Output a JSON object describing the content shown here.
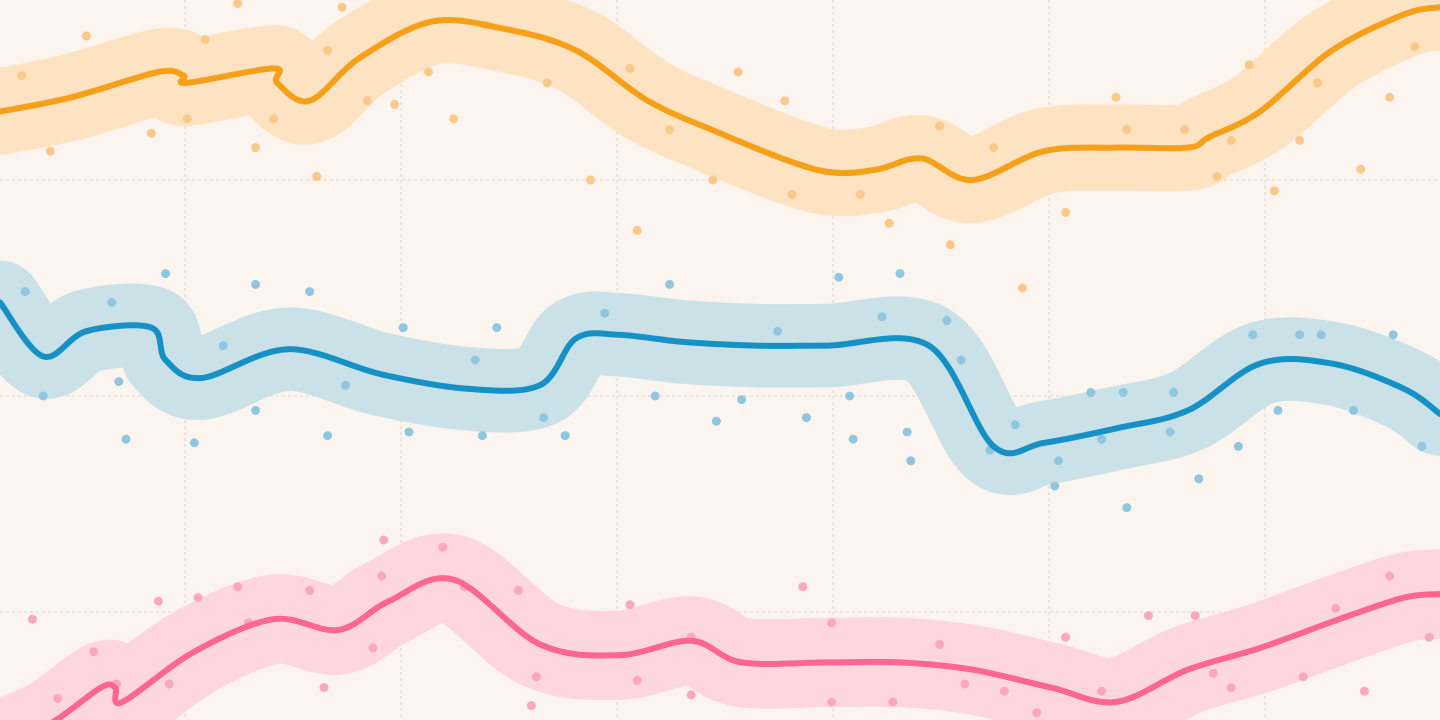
{
  "chart_data": {
    "type": "line",
    "title": "",
    "xlabel": "",
    "ylabel": "",
    "grid": true,
    "legend": "none",
    "x_range": [
      0,
      20
    ],
    "y_range": [
      0,
      10
    ],
    "x_gridlines": [
      2.57,
      5.57,
      8.57,
      11.57,
      14.57,
      17.57
    ],
    "y_gridlines": [
      1.5,
      4.5,
      7.5
    ],
    "series": [
      {
        "color": "#f6a01a",
        "band_color": "#fde3c2",
        "point_color": "#fbc88a",
        "band_half_width": 0.6,
        "line_x": [
          0,
          1,
          2.2,
          2.55,
          2.6,
          3.8,
          3.85,
          4.3,
          5,
          6,
          7,
          8,
          9,
          10,
          11,
          11.6,
          12.2,
          12.8,
          13.5,
          14.5,
          15.5,
          16.5,
          16.8,
          17.5,
          18.5,
          19.5,
          20
        ],
        "line_y": [
          8.45,
          8.65,
          9.0,
          8.95,
          8.85,
          9.05,
          8.85,
          8.6,
          9.2,
          9.7,
          9.6,
          9.3,
          8.6,
          8.15,
          7.75,
          7.6,
          7.65,
          7.8,
          7.5,
          7.9,
          7.95,
          7.95,
          8.1,
          8.45,
          9.3,
          9.8,
          9.9
        ],
        "points_x": [
          0.3,
          0.7,
          1.2,
          2.1,
          2.6,
          2.85,
          3.3,
          3.55,
          3.8,
          4.4,
          4.55,
          4.75,
          5.1,
          5.48,
          5.95,
          6.3,
          6.75,
          7.6,
          8.2,
          8.75,
          8.85,
          9.3,
          9.9,
          10.25,
          10.9,
          11.0,
          11.95,
          12.35,
          13.05,
          13.2,
          13.8,
          14.2,
          14.8,
          15.5,
          15.65,
          16.45,
          16.9,
          17.1,
          17.35,
          17.7,
          18.05,
          18.3,
          18.9,
          19.3,
          19.65
        ],
        "points_y": [
          8.95,
          7.9,
          9.5,
          8.15,
          8.35,
          9.45,
          9.95,
          7.95,
          8.35,
          7.55,
          9.3,
          9.9,
          8.6,
          8.55,
          9.0,
          8.35,
          9.65,
          8.85,
          7.5,
          9.05,
          6.8,
          8.2,
          7.5,
          9.0,
          8.6,
          7.3,
          7.3,
          6.9,
          8.25,
          6.6,
          7.95,
          6.0,
          7.05,
          8.65,
          8.2,
          8.2,
          7.55,
          8.05,
          9.1,
          7.35,
          8.05,
          8.85,
          7.65,
          8.65,
          9.35
        ]
      },
      {
        "color": "#1691c6",
        "band_color": "#cbe1e8",
        "point_color": "#8fc7e1",
        "band_half_width": 0.58,
        "line_x": [
          0,
          0.6,
          1.2,
          2.1,
          2.3,
          2.8,
          4.0,
          5.3,
          6.5,
          7.5,
          8.0,
          8.6,
          9.5,
          10.5,
          11.5,
          12.9,
          13.8,
          14.5,
          15.5,
          16.5,
          17.5,
          18.5,
          19.5,
          20
        ],
        "line_y": [
          5.8,
          5.05,
          5.4,
          5.45,
          5.0,
          4.75,
          5.15,
          4.8,
          4.6,
          4.65,
          5.3,
          5.35,
          5.25,
          5.2,
          5.2,
          5.2,
          3.8,
          3.85,
          4.05,
          4.3,
          4.95,
          4.95,
          4.6,
          4.25
        ],
        "points_x": [
          0.35,
          0.6,
          1.55,
          1.65,
          1.75,
          2.3,
          2.7,
          3.1,
          3.55,
          3.55,
          4.3,
          4.55,
          4.8,
          5.6,
          5.68,
          6.6,
          6.7,
          6.9,
          7.55,
          7.85,
          8.4,
          9.1,
          9.3,
          9.95,
          10.3,
          10.8,
          11.2,
          11.65,
          11.8,
          11.85,
          12.25,
          12.5,
          12.6,
          12.65,
          13.15,
          13.35,
          13.75,
          14.1,
          14.65,
          14.7,
          15.15,
          15.3,
          15.6,
          15.65,
          16.25,
          16.65,
          16.3,
          17.2,
          17.4,
          17.75,
          18.05,
          18.35,
          18.8,
          19.35,
          19.75
        ],
        "points_y": [
          5.95,
          4.5,
          5.8,
          4.7,
          3.9,
          6.2,
          3.85,
          5.2,
          6.05,
          4.3,
          5.95,
          3.95,
          4.65,
          5.45,
          4.0,
          5.0,
          3.95,
          5.45,
          4.2,
          3.95,
          5.65,
          4.5,
          6.05,
          4.15,
          4.45,
          5.4,
          4.2,
          6.15,
          4.5,
          3.9,
          5.6,
          6.2,
          4.0,
          3.6,
          5.55,
          5.0,
          3.75,
          4.1,
          3.25,
          3.6,
          4.55,
          3.9,
          4.55,
          2.95,
          4.0,
          3.35,
          4.55,
          3.8,
          5.35,
          4.3,
          5.35,
          5.35,
          4.3,
          5.35,
          3.8
        ],
        "points_y_extra_note": ""
      },
      {
        "color": "#fd678f",
        "band_color": "#fdd6de",
        "point_color": "#fba8bf",
        "band_half_width": 0.62,
        "line_x": [
          0,
          0.7,
          1.4,
          1.6,
          1.7,
          2.7,
          3.8,
          4.7,
          5.4,
          6.3,
          7.5,
          8.6,
          9.6,
          10.3,
          11.5,
          12.5,
          13.5,
          14.6,
          15.5,
          16.5,
          17.5,
          18.6,
          19.5,
          20
        ],
        "line_y": [
          -0.35,
          -0.05,
          0.45,
          0.45,
          0.25,
          0.95,
          1.4,
          1.25,
          1.65,
          1.95,
          1.05,
          0.9,
          1.1,
          0.8,
          0.8,
          0.8,
          0.7,
          0.45,
          0.25,
          0.7,
          1.0,
          1.4,
          1.7,
          1.75
        ],
        "points_x": [
          0.45,
          0.8,
          1.3,
          1.62,
          2.2,
          2.35,
          2.75,
          3.3,
          3.45,
          4.3,
          4.5,
          5.18,
          5.3,
          5.33,
          6.15,
          6.45,
          7.2,
          7.45,
          7.38,
          8.75,
          9.6,
          8.85,
          9.6,
          11.15,
          11.55,
          11.55,
          12.4,
          13.05,
          13.4,
          13.95,
          14.4,
          14.8,
          15.3,
          15.95,
          16.6,
          16.85,
          17.1,
          18.1,
          18.55,
          18.95,
          19.3,
          19.85
        ],
        "points_y": [
          1.4,
          0.3,
          0.95,
          0.5,
          1.65,
          0.5,
          1.7,
          1.85,
          1.35,
          1.8,
          0.45,
          1.0,
          2.0,
          2.5,
          2.4,
          1.85,
          1.8,
          0.6,
          0.2,
          1.6,
          1.15,
          0.55,
          0.35,
          1.85,
          1.35,
          0.25,
          0.25,
          1.05,
          0.5,
          0.4,
          0.1,
          1.15,
          0.4,
          1.45,
          1.45,
          0.65,
          0.45,
          0.6,
          1.55,
          0.4,
          2.0,
          1.15
        ]
      }
    ]
  }
}
